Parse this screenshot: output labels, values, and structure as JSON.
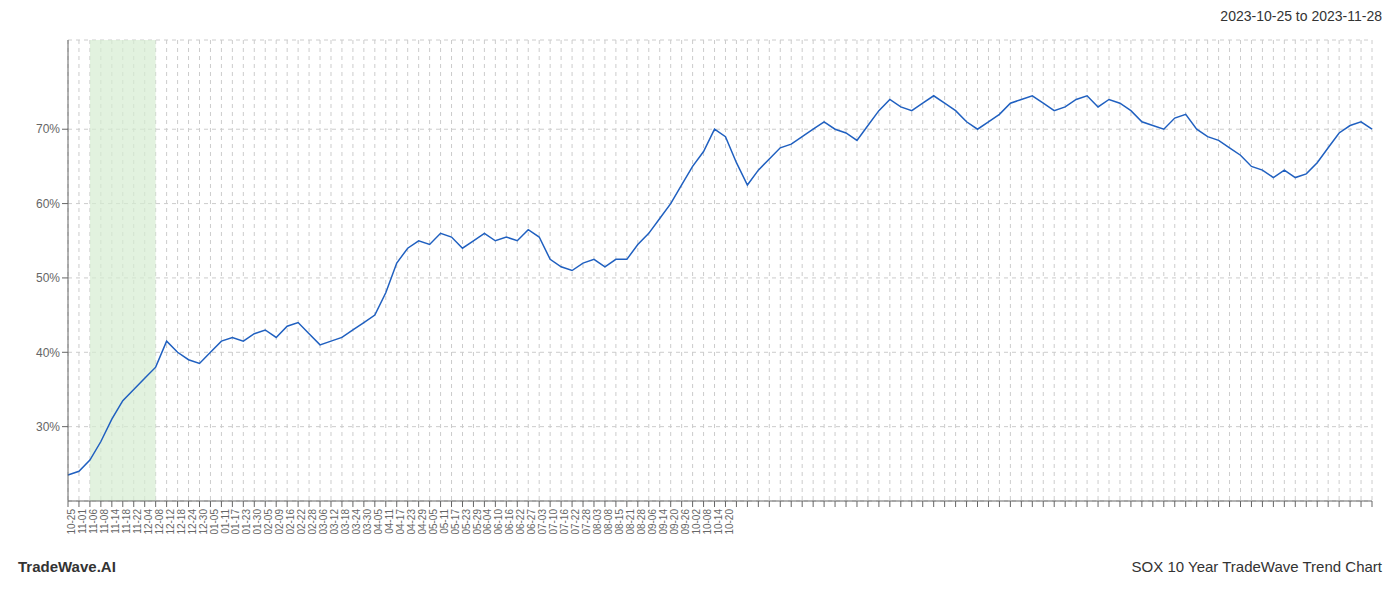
{
  "chart_data": {
    "type": "line",
    "title": "2023-10-25 to 2023-11-28",
    "annotations": [
      "TradeWave.AI",
      "SOX 10 Year TradeWave Trend Chart"
    ],
    "categories": [
      "10-25",
      "11-01",
      "11-06",
      "11-08",
      "11-14",
      "11-18",
      "11-22",
      "12-04",
      "12-08",
      "12-12",
      "12-18",
      "12-24",
      "12-30",
      "01-05",
      "01-11",
      "01-17",
      "01-23",
      "01-30",
      "02-05",
      "02-09",
      "02-16",
      "02-22",
      "02-28",
      "03-06",
      "03-12",
      "03-18",
      "03-24",
      "03-30",
      "04-05",
      "04-11",
      "04-17",
      "04-23",
      "04-29",
      "05-05",
      "05-11",
      "05-17",
      "05-23",
      "05-29",
      "06-04",
      "06-10",
      "06-16",
      "06-22",
      "06-27",
      "07-03",
      "07-10",
      "07-16",
      "07-22",
      "07-28",
      "08-03",
      "08-08",
      "08-15",
      "08-21",
      "08-28",
      "09-06",
      "09-14",
      "09-20",
      "09-26",
      "10-02",
      "10-08",
      "10-14",
      "10-20",
      null,
      null,
      null,
      null,
      null,
      null,
      null,
      null,
      null,
      null,
      null,
      null,
      null,
      null,
      null,
      null,
      null,
      null,
      null,
      null,
      null,
      null,
      null,
      null,
      null,
      null,
      null,
      null,
      null,
      null,
      null,
      null,
      null,
      null,
      null,
      null,
      null,
      null,
      null,
      null,
      null,
      null,
      null,
      null,
      null,
      null,
      null,
      null,
      null,
      null,
      null,
      null,
      null,
      null,
      null,
      null,
      null,
      null,
      null
    ],
    "values": [
      23.5,
      24.0,
      25.5,
      28.0,
      31.0,
      33.5,
      35.0,
      36.5,
      38.0,
      41.5,
      40.0,
      39.0,
      38.5,
      40.0,
      41.5,
      42.0,
      41.5,
      42.5,
      43.0,
      42.0,
      43.5,
      44.0,
      42.5,
      41.0,
      41.5,
      42.0,
      43.0,
      44.0,
      45.0,
      48.0,
      52.0,
      54.0,
      55.0,
      54.5,
      56.0,
      55.5,
      54.0,
      55.0,
      56.0,
      55.0,
      55.5,
      55.0,
      56.5,
      55.5,
      52.5,
      51.5,
      51.0,
      52.0,
      52.5,
      51.5,
      52.5,
      52.5,
      54.5,
      56.0,
      58.0,
      60.0,
      62.5,
      65.0,
      67.0,
      70.0,
      69.0,
      65.5,
      62.5,
      64.5,
      66.0,
      67.5,
      68.0,
      69.0,
      70.0,
      71.0,
      70.0,
      69.5,
      68.5,
      70.5,
      72.5,
      74.0,
      73.0,
      72.5,
      73.5,
      74.5,
      73.5,
      72.5,
      71.0,
      70.0,
      71.0,
      72.0,
      73.5,
      74.0,
      74.5,
      73.5,
      72.5,
      73.0,
      74.0,
      74.5,
      73.0,
      74.0,
      73.5,
      72.5,
      71.0,
      70.5,
      70.0,
      71.5,
      72.0,
      70.0,
      69.0,
      68.5,
      67.5,
      66.5,
      65.0,
      64.5,
      63.5,
      64.5,
      63.5,
      64.0,
      65.5,
      67.5,
      69.5,
      70.5,
      71.0,
      70.0
    ],
    "color": "#2060c0",
    "highlight": {
      "from": "11-06",
      "to": "12-08",
      "color": "#d6ecd2"
    },
    "ylim": [
      20,
      82
    ],
    "yticks": [
      {
        "value": 30,
        "label": "30%"
      },
      {
        "value": 40,
        "label": "40%"
      },
      {
        "value": 50,
        "label": "50%"
      },
      {
        "value": 60,
        "label": "60%"
      },
      {
        "value": 70,
        "label": "70%"
      }
    ],
    "grid": true
  }
}
